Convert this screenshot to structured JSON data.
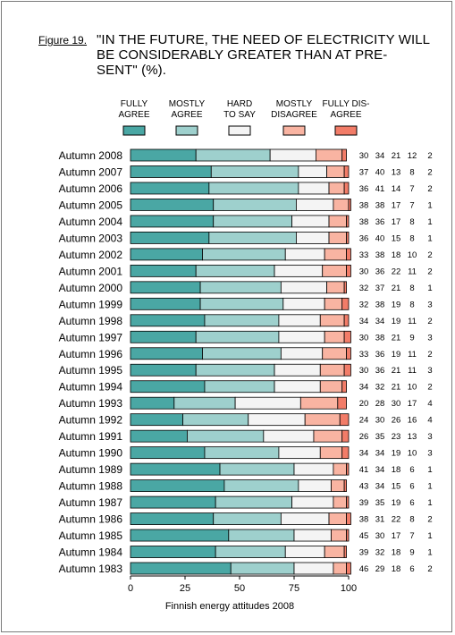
{
  "figure": {
    "label": "Figure 19.",
    "title_lines": [
      "\"IN THE FUTURE, THE NEED OF ELECTRICITY WILL",
      "BE CONSIDERABLY GREATER THAN AT PRE-",
      "SENT\" (%)."
    ]
  },
  "chart_data": {
    "type": "bar",
    "orientation": "horizontal",
    "stacked": true,
    "source_note": "Finnish energy attitudes 2008",
    "xlim": [
      0,
      100
    ],
    "xticks": [
      "0",
      "25",
      "50",
      "75",
      "100"
    ],
    "legend_position": "top",
    "categories": [
      "Autumn 2008",
      "Autumn 2007",
      "Autumn 2006",
      "Autumn 2005",
      "Autumn 2004",
      "Autumn 2003",
      "Autumn 2002",
      "Autumn 2001",
      "Autumn 2000",
      "Autumn 1999",
      "Autumn 1998",
      "Autumn 1997",
      "Autumn 1996",
      "Autumn 1995",
      "Autumn 1994",
      "Autumn 1993",
      "Autumn 1992",
      "Autumn 1991",
      "Autumn 1990",
      "Autumn 1989",
      "Autumn 1988",
      "Autumn 1987",
      "Autumn 1986",
      "Autumn 1985",
      "Autumn 1984",
      "Autumn 1983"
    ],
    "series": [
      {
        "name": "FULLY AGREE",
        "label_lines": [
          "FULLY",
          "AGREE"
        ],
        "color": "#4aa7a4",
        "values": [
          30,
          37,
          36,
          38,
          38,
          36,
          33,
          30,
          32,
          32,
          34,
          30,
          33,
          30,
          34,
          20,
          24,
          26,
          34,
          41,
          43,
          39,
          38,
          45,
          39,
          46
        ]
      },
      {
        "name": "MOSTLY AGREE",
        "label_lines": [
          "MOSTLY",
          "AGREE"
        ],
        "color": "#9ed0cd",
        "values": [
          34,
          40,
          41,
          38,
          36,
          40,
          38,
          36,
          37,
          38,
          34,
          38,
          36,
          36,
          32,
          28,
          30,
          35,
          34,
          34,
          34,
          35,
          31,
          30,
          32,
          29
        ]
      },
      {
        "name": "HARD TO SAY",
        "label_lines": [
          "HARD",
          "TO SAY"
        ],
        "color": "#f4f4f4",
        "values": [
          21,
          13,
          14,
          17,
          17,
          15,
          18,
          22,
          21,
          19,
          19,
          21,
          19,
          21,
          21,
          30,
          26,
          23,
          19,
          18,
          15,
          19,
          22,
          17,
          18,
          18
        ]
      },
      {
        "name": "MOSTLY DISAGREE",
        "label_lines": [
          "MOSTLY",
          "DISAGREE"
        ],
        "color": "#f9b4a2",
        "values": [
          12,
          8,
          7,
          7,
          8,
          8,
          10,
          11,
          8,
          8,
          11,
          9,
          11,
          11,
          10,
          17,
          16,
          13,
          10,
          6,
          6,
          6,
          8,
          7,
          9,
          6
        ]
      },
      {
        "name": "FULLY DISAGREE",
        "label_lines": [
          "FULLY DIS-",
          "AGREE"
        ],
        "color": "#f27c68",
        "values": [
          2,
          2,
          2,
          1,
          1,
          1,
          2,
          2,
          1,
          3,
          2,
          3,
          2,
          3,
          2,
          4,
          4,
          3,
          3,
          1,
          1,
          1,
          2,
          1,
          1,
          2
        ]
      }
    ]
  }
}
